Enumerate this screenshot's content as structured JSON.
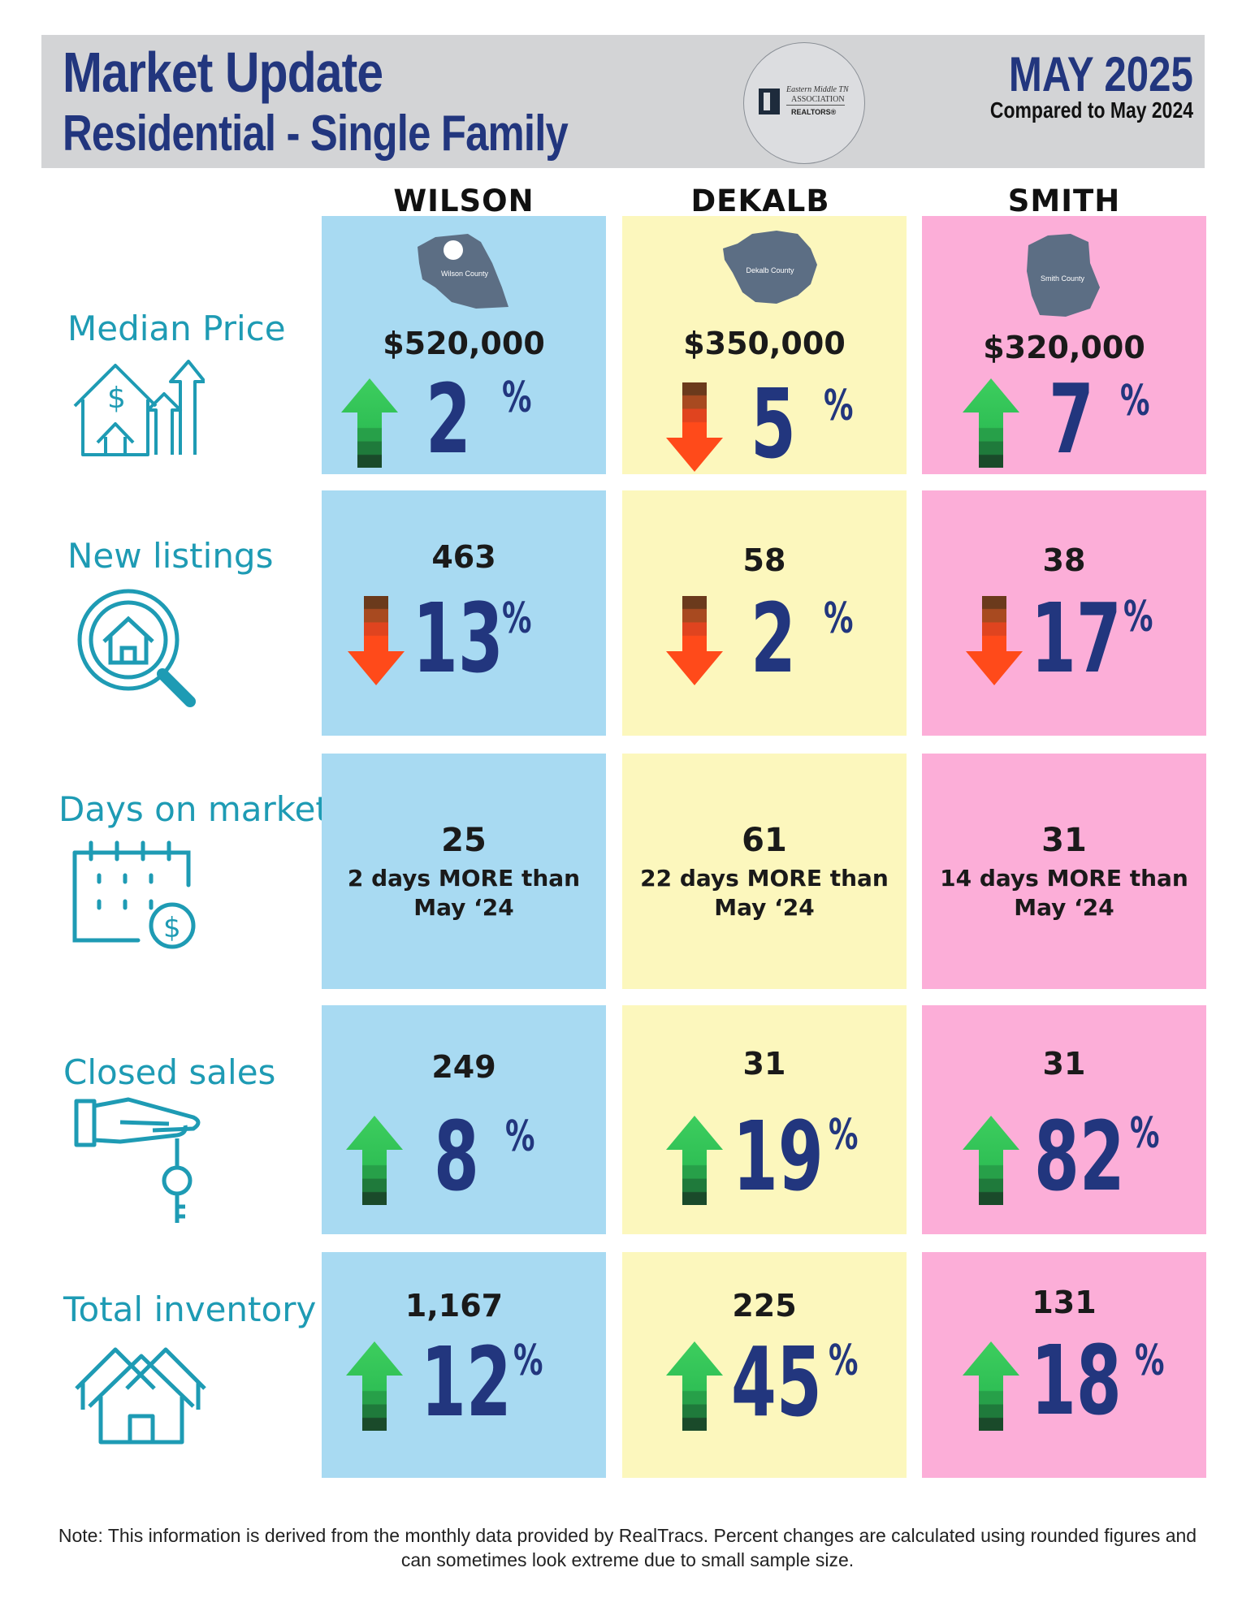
{
  "header": {
    "title": "Market Update",
    "subtitle": "Residential - Single Family",
    "period": "MAY 2025",
    "comparison": "Compared to May 2024",
    "logo": {
      "line1": "Eastern Middle TN",
      "line2": "ASSOCIATION",
      "line3": "REALTORS®"
    }
  },
  "counties": [
    {
      "name": "WILSON",
      "map_label": "Wilson County",
      "color": "#a8daf2"
    },
    {
      "name": "DEKALB",
      "map_label": "Dekalb County",
      "color": "#fcf7bd"
    },
    {
      "name": "SMITH",
      "map_label": "Smith County",
      "color": "#fcaed8"
    }
  ],
  "metrics": {
    "median_price": {
      "label": "Median Price",
      "icon": "house-price-up-icon",
      "values": [
        {
          "value": "$520,000",
          "change": "2",
          "unit": "%",
          "direction": "up"
        },
        {
          "value": "$350,000",
          "change": "5",
          "unit": "%",
          "direction": "down"
        },
        {
          "value": "$320,000",
          "change": "7",
          "unit": "%",
          "direction": "up"
        }
      ]
    },
    "new_listings": {
      "label": "New listings",
      "icon": "house-search-icon",
      "values": [
        {
          "value": "463",
          "change": "13",
          "unit": "%",
          "direction": "down"
        },
        {
          "value": "58",
          "change": "2",
          "unit": "%",
          "direction": "down"
        },
        {
          "value": "38",
          "change": "17",
          "unit": "%",
          "direction": "down"
        }
      ]
    },
    "days_on_market": {
      "label": "Days on market",
      "icon": "calendar-dollar-icon",
      "values": [
        {
          "value": "25",
          "line1": "2 days MORE than",
          "line2": "May ‘24"
        },
        {
          "value": "61",
          "line1": "22 days MORE than",
          "line2": "May ‘24"
        },
        {
          "value": "31",
          "line1": "14 days MORE than",
          "line2": "May ‘24"
        }
      ]
    },
    "closed_sales": {
      "label": "Closed sales",
      "icon": "hand-key-icon",
      "values": [
        {
          "value": "249",
          "change": "8",
          "unit": "%",
          "direction": "up"
        },
        {
          "value": "31",
          "change": "19",
          "unit": "%",
          "direction": "up"
        },
        {
          "value": "31",
          "change": "82",
          "unit": "%",
          "direction": "up"
        }
      ]
    },
    "total_inventory": {
      "label": "Total inventory",
      "icon": "houses-icon",
      "values": [
        {
          "value": "1,167",
          "change": "12",
          "unit": "%",
          "direction": "up"
        },
        {
          "value": "225",
          "change": "45",
          "unit": "%",
          "direction": "up"
        },
        {
          "value": "131",
          "change": "18",
          "unit": "%",
          "direction": "up"
        }
      ]
    }
  },
  "footnote": "Note: This information is derived from the monthly data provided by RealTracs. Percent changes are calculated using rounded figures and can sometimes look extreme due to small sample size."
}
